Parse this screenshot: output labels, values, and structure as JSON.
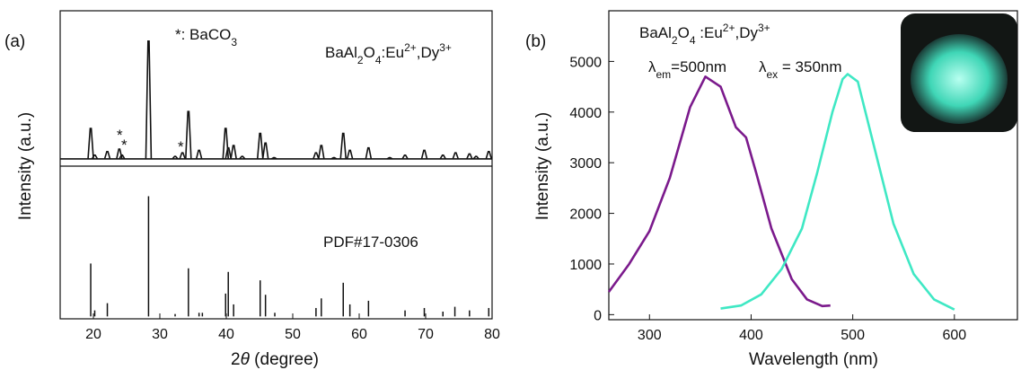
{
  "chart_data": [
    {
      "type": "xrd",
      "panel_label": "(a)",
      "note_parts": [
        "*: BaCO",
        "3"
      ],
      "sample_label_parts": [
        "BaAl",
        "2",
        "O",
        "4",
        ":Eu",
        "2+",
        ",Dy",
        "3+"
      ],
      "reference_label": "PDF#17-0306",
      "xlabel_parts": [
        "2",
        "θ",
        " (degree)"
      ],
      "ylabel": "Intensity (a.u.)",
      "peak_markers": [
        "*",
        "*",
        "*"
      ],
      "xlim": [
        15,
        80
      ],
      "xticks": [
        20,
        30,
        40,
        50,
        60,
        70,
        80
      ],
      "color": "#111111",
      "pattern": {
        "ylim": [
          -3,
          125
        ],
        "baseline": 3,
        "x": [
          19.6,
          20.2,
          22.1,
          23.9,
          24.3,
          28.3,
          32.3,
          33.4,
          34.3,
          35.9,
          39.9,
          40.3,
          41.1,
          42.4,
          45.1,
          45.9,
          47.2,
          53.5,
          54.3,
          56.2,
          57.6,
          58.6,
          61.4,
          64.6,
          66.9,
          69.8,
          72.6,
          74.5,
          76.6,
          77.6,
          79.5
        ],
        "values": [
          28,
          6,
          9,
          11,
          6,
          100,
          5,
          8,
          42,
          10,
          28,
          12,
          14,
          5,
          24,
          16,
          4,
          8,
          14,
          4,
          24,
          10,
          12,
          4,
          6,
          10,
          6,
          8,
          7,
          5,
          9
        ]
      },
      "reference": {
        "ylim": [
          -2,
          125
        ],
        "x": [
          19.6,
          20.2,
          22.1,
          28.3,
          32.3,
          34.3,
          35.9,
          36.4,
          39.9,
          40.3,
          41.1,
          45.1,
          45.9,
          47.3,
          53.5,
          54.3,
          57.6,
          58.6,
          61.4,
          66.9,
          69.8,
          72.6,
          74.4,
          76.6,
          79.5
        ],
        "values": [
          44,
          5,
          11,
          100,
          2,
          40,
          3,
          3,
          19,
          37,
          10,
          30,
          18,
          3,
          7,
          15,
          28,
          10,
          13,
          5,
          7,
          4,
          8,
          5,
          7
        ]
      }
    },
    {
      "type": "line",
      "panel_label": "(b)",
      "sample_label_parts": [
        "BaAl",
        "2",
        "O",
        "4",
        " :Eu",
        "2+",
        ",Dy",
        "3+"
      ],
      "xlabel": "Wavelength (nm)",
      "ylabel": "Intensity (a.u.)",
      "xlim": [
        260,
        662
      ],
      "ylim": [
        -100,
        6000
      ],
      "xticks": [
        300,
        400,
        500,
        600
      ],
      "yticks": [
        0,
        1000,
        2000,
        3000,
        4000,
        5000
      ],
      "series": [
        {
          "label_parts": [
            "λ",
            "em",
            "=500nm"
          ],
          "color": "#7b1a8c",
          "x": [
            260,
            280,
            300,
            320,
            340,
            355,
            370,
            385,
            395,
            405,
            420,
            440,
            455,
            470,
            478
          ],
          "values": [
            450,
            1000,
            1650,
            2700,
            4100,
            4700,
            4500,
            3700,
            3500,
            2800,
            1700,
            700,
            300,
            170,
            180
          ]
        },
        {
          "label_parts": [
            "λ",
            "ex",
            " = 350nm"
          ],
          "color": "#3fe8c4",
          "x": [
            370,
            390,
            410,
            430,
            450,
            465,
            480,
            490,
            495,
            505,
            520,
            540,
            560,
            580,
            600
          ],
          "values": [
            120,
            180,
            400,
            900,
            1700,
            2800,
            4000,
            4650,
            4750,
            4600,
            3400,
            1800,
            800,
            300,
            100
          ]
        }
      ]
    }
  ]
}
